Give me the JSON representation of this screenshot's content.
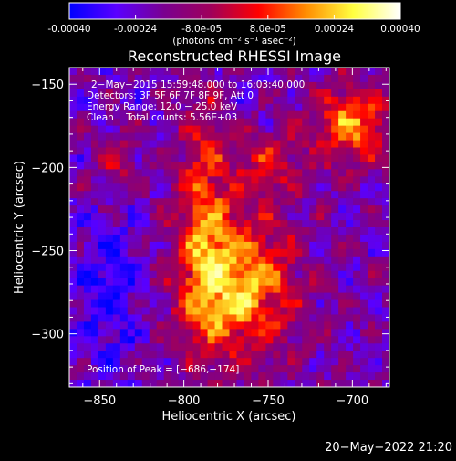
{
  "colorbar": {
    "tick_labels": [
      "-0.00040",
      "-0.00024",
      "-8.0e-05",
      "8.0e-05",
      "0.00024",
      "0.00040"
    ],
    "unit_label": "(photons cm⁻² s⁻¹ asec⁻²)",
    "range": [
      -0.0004,
      0.0004
    ],
    "stops": [
      "#0000ff",
      "#5a00ff",
      "#7a0090",
      "#a0005a",
      "#ff0000",
      "#ff8c00",
      "#ffff40",
      "#ffffff"
    ]
  },
  "chart_data": {
    "type": "heatmap",
    "title": "Reconstructed RHESSI Image",
    "xlabel": "Heliocentric X (arcsec)",
    "ylabel": "Heliocentric Y (arcsec)",
    "xlim": [
      -868,
      -678
    ],
    "ylim": [
      -332,
      -140
    ],
    "xticks": [
      -850,
      -800,
      -750,
      -700
    ],
    "xtick_labels": [
      "−850",
      "−800",
      "−750",
      "−700"
    ],
    "yticks": [
      -300,
      -250,
      -200,
      -150
    ],
    "ytick_labels": [
      "−300",
      "−250",
      "−200",
      "−150"
    ],
    "peak": [
      -686,
      -174
    ],
    "annotations": [
      "2−May−2015 15:59:48.000 to 16:03:40.000",
      "Detectors: 3F 5F 6F 7F 8F 9F, Att 0",
      "Energy Range: 12.0 − 25.0 keV",
      "Clean    Total counts: 5.56E+03"
    ],
    "peak_label": "Position of Peak = [−686,−174]"
  },
  "timestamp": "20−May−2022 21:20"
}
